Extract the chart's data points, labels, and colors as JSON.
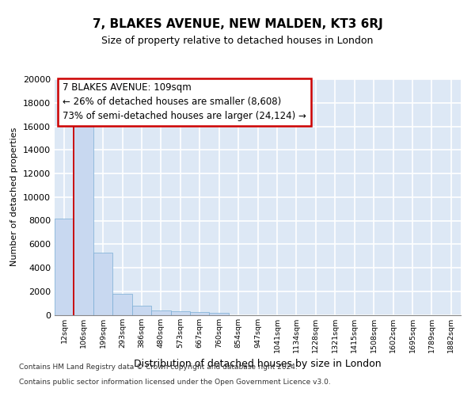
{
  "title": "7, BLAKES AVENUE, NEW MALDEN, KT3 6RJ",
  "subtitle": "Size of property relative to detached houses in London",
  "xlabel": "Distribution of detached houses by size in London",
  "ylabel": "Number of detached properties",
  "bar_color": "#c8d8f0",
  "bar_edge_color": "#7aadd4",
  "background_color": "#dde8f5",
  "grid_color": "#ffffff",
  "categories": [
    "12sqm",
    "106sqm",
    "199sqm",
    "293sqm",
    "386sqm",
    "480sqm",
    "573sqm",
    "667sqm",
    "760sqm",
    "854sqm",
    "947sqm",
    "1041sqm",
    "1134sqm",
    "1228sqm",
    "1321sqm",
    "1415sqm",
    "1508sqm",
    "1602sqm",
    "1695sqm",
    "1789sqm",
    "1882sqm"
  ],
  "values": [
    8200,
    16600,
    5300,
    1800,
    750,
    350,
    275,
    220,
    175,
    0,
    0,
    0,
    0,
    0,
    0,
    0,
    0,
    0,
    0,
    0,
    0
  ],
  "ylim": [
    0,
    20000
  ],
  "yticks": [
    0,
    2000,
    4000,
    6000,
    8000,
    10000,
    12000,
    14000,
    16000,
    18000,
    20000
  ],
  "red_line_x": 0.5,
  "annotation_line1": "7 BLAKES AVENUE: 109sqm",
  "annotation_line2": "← 26% of detached houses are smaller (8,608)",
  "annotation_line3": "73% of semi-detached houses are larger (24,124) →",
  "annotation_box_color": "#ffffff",
  "annotation_border_color": "#cc0000",
  "footnote1": "Contains HM Land Registry data © Crown copyright and database right 2024.",
  "footnote2": "Contains public sector information licensed under the Open Government Licence v3.0."
}
